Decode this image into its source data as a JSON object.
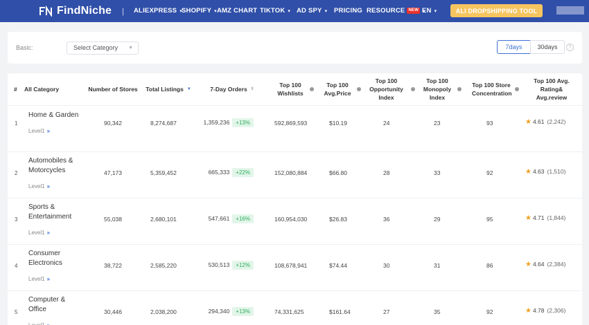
{
  "nav": {
    "logo": "FindNiche",
    "separator": "|",
    "items": [
      {
        "label": "ALIEXPRESS",
        "dropdown": "▾"
      },
      {
        "label": "SHOPIFY",
        "dropdown": "▾"
      },
      {
        "label": "AMZ CHART",
        "dropdown": ""
      },
      {
        "label": "TIKTOK",
        "dropdown": "▾"
      },
      {
        "label": "AD SPY",
        "dropdown": "▾"
      },
      {
        "label": "PRICING",
        "dropdown": ""
      },
      {
        "label": "RESOURCE",
        "badge": "NEW",
        "dropdown": "▾"
      },
      {
        "label": "EN",
        "dropdown": "▾"
      }
    ],
    "cta": "ALI DROPSHIPPING TOOL"
  },
  "filter": {
    "basic_label": "Basic:",
    "category_placeholder": "Select Category",
    "range_7": "7days",
    "range_30": "30days",
    "help": "?"
  },
  "table": {
    "headers": {
      "idx": "#",
      "category": "All Category",
      "stores": "Number of Stores",
      "listings": "Total Listings",
      "orders": "7-Day Orders",
      "wishlists": "Top 100 Wishlists",
      "price": "Top 100 Avg.Price",
      "opportunity": "Top 100 Opportunity Index",
      "monopoly": "Top 100 Monopoly Index",
      "concentration": "Top 100 Store Concentration",
      "rating": "Top 100 Avg. Rating& Avg.review"
    },
    "level_label": "Level1",
    "rows": [
      {
        "idx": "1",
        "name": "Home & Garden",
        "stores": "90,342",
        "listings": "8,274,687",
        "orders": "1,359,236",
        "change": "+13%",
        "wishlists": "592,869,593",
        "price": "$10.19",
        "opportunity": "24",
        "monopoly": "23",
        "concentration": "93",
        "rating": "4.61",
        "reviews": "(2,242)"
      },
      {
        "idx": "2",
        "name": "Automobiles & Motorcycles",
        "stores": "47,173",
        "listings": "5,359,452",
        "orders": "665,333",
        "change": "+22%",
        "wishlists": "152,080,884",
        "price": "$66.80",
        "opportunity": "28",
        "monopoly": "33",
        "concentration": "92",
        "rating": "4.63",
        "reviews": "(1,510)"
      },
      {
        "idx": "3",
        "name": "Sports & Entertainment",
        "stores": "55,038",
        "listings": "2,680,101",
        "orders": "547,661",
        "change": "+16%",
        "wishlists": "160,954,030",
        "price": "$26.83",
        "opportunity": "36",
        "monopoly": "29",
        "concentration": "95",
        "rating": "4.71",
        "reviews": "(1,844)"
      },
      {
        "idx": "4",
        "name": "Consumer Electronics",
        "stores": "38,722",
        "listings": "2,585,220",
        "orders": "530,513",
        "change": "+12%",
        "wishlists": "108,678,941",
        "price": "$74.44",
        "opportunity": "30",
        "monopoly": "31",
        "concentration": "86",
        "rating": "4.64",
        "reviews": "(2,384)"
      },
      {
        "idx": "5",
        "name": "Computer & Office",
        "stores": "30,446",
        "listings": "2,038,200",
        "orders": "294,340",
        "change": "+13%",
        "wishlists": "74,331,625",
        "price": "$161.64",
        "opportunity": "27",
        "monopoly": "35",
        "concentration": "92",
        "rating": "4.78",
        "reviews": "(2,306)"
      }
    ]
  },
  "colors": {
    "nav_bg": "#2f4fa8",
    "accent": "#3d6fd6",
    "cta": "#f6c560",
    "positive": "#2eae5d"
  }
}
